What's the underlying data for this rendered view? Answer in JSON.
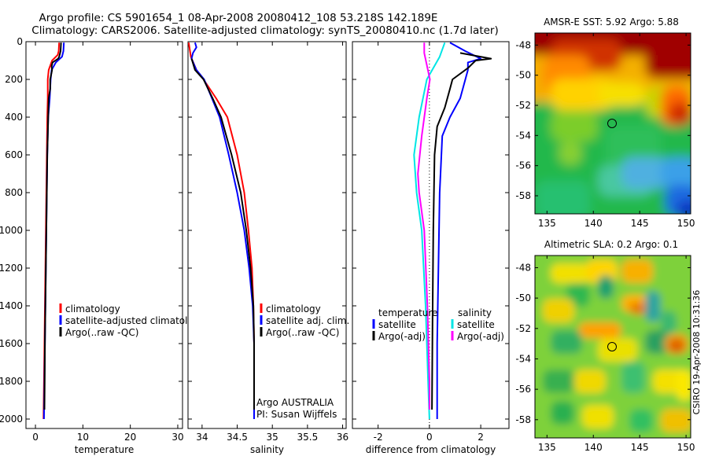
{
  "title": {
    "line1": "Argo profile: CS 5901654_1 08-Apr-2008 20080412_108 53.218S 142.189E",
    "line2": "Climatology: CARS2006. Satellite-adjusted climatology: synTS_20080410.nc (1.7d later)"
  },
  "depth_ticks": [
    "0",
    "200",
    "400",
    "600",
    "800",
    "1000",
    "1200",
    "1400",
    "1600",
    "1800",
    "2000"
  ],
  "colors": {
    "red": "#ff0000",
    "blue": "#0000ff",
    "black": "#000000",
    "cyan": "#00e5e5",
    "magenta": "#ff00ff",
    "axis": "#000000"
  },
  "chart_data": [
    {
      "id": "temperature",
      "type": "line",
      "xlabel": "temperature",
      "ylabel": "",
      "xlim": [
        -2,
        31
      ],
      "ylim": [
        2050,
        0
      ],
      "xticks": [
        "0",
        "10",
        "20",
        "30"
      ],
      "legend": [
        "climatology",
        "satellite-adjusted climatology",
        "Argo(..raw -QC)"
      ],
      "series": [
        {
          "name": "climatology",
          "color": "red",
          "points": [
            [
              5.0,
              5
            ],
            [
              4.9,
              50
            ],
            [
              4.7,
              70
            ],
            [
              3.5,
              100
            ],
            [
              2.8,
              150
            ],
            [
              2.6,
              200
            ],
            [
              2.6,
              300
            ],
            [
              2.5,
              400
            ],
            [
              2.4,
              600
            ],
            [
              2.3,
              800
            ],
            [
              2.2,
              1000
            ],
            [
              2.1,
              1200
            ],
            [
              2.0,
              1400
            ],
            [
              1.9,
              1600
            ],
            [
              1.8,
              1800
            ],
            [
              1.7,
              2000
            ]
          ]
        },
        {
          "name": "satellite-adjusted climatology",
          "color": "blue",
          "points": [
            [
              6.0,
              5
            ],
            [
              5.9,
              50
            ],
            [
              5.6,
              80
            ],
            [
              4.3,
              110
            ],
            [
              3.4,
              150
            ],
            [
              3.2,
              200
            ],
            [
              3.0,
              300
            ],
            [
              2.7,
              400
            ],
            [
              2.5,
              600
            ],
            [
              2.4,
              800
            ],
            [
              2.3,
              1000
            ],
            [
              2.2,
              1200
            ],
            [
              2.1,
              1400
            ],
            [
              2.0,
              1600
            ],
            [
              1.9,
              1800
            ],
            [
              1.8,
              2000
            ]
          ]
        },
        {
          "name": "Argo(..raw -QC)",
          "color": "black",
          "points": [
            [
              5.4,
              5
            ],
            [
              5.3,
              50
            ],
            [
              5.0,
              80
            ],
            [
              4.8,
              90
            ],
            [
              3.6,
              110
            ],
            [
              3.4,
              130
            ],
            [
              3.5,
              150
            ],
            [
              3.1,
              200
            ],
            [
              3.1,
              250
            ],
            [
              2.8,
              300
            ],
            [
              2.7,
              400
            ],
            [
              2.5,
              600
            ],
            [
              2.4,
              800
            ],
            [
              2.3,
              1000
            ],
            [
              2.2,
              1200
            ],
            [
              2.1,
              1400
            ],
            [
              2.0,
              1600
            ],
            [
              1.95,
              1800
            ],
            [
              1.9,
              1950
            ]
          ]
        }
      ]
    },
    {
      "id": "salinity",
      "type": "line",
      "xlabel": "salinity",
      "ylabel": "",
      "xlim": [
        33.8,
        36.05
      ],
      "ylim": [
        2050,
        0
      ],
      "xticks": [
        "34",
        "34.5",
        "35",
        "35.5",
        "36"
      ],
      "legend": [
        "climatology",
        "satellite adj. clim.",
        "Argo(..raw -QC)"
      ],
      "annotation": [
        "Argo AUSTRALIA",
        "PI: Susan Wijffels"
      ],
      "series": [
        {
          "name": "climatology",
          "color": "red",
          "points": [
            [
              33.81,
              5
            ],
            [
              33.84,
              80
            ],
            [
              33.92,
              150
            ],
            [
              34.02,
              200
            ],
            [
              34.2,
              300
            ],
            [
              34.36,
              400
            ],
            [
              34.5,
              600
            ],
            [
              34.6,
              800
            ],
            [
              34.66,
              1000
            ],
            [
              34.71,
              1200
            ],
            [
              34.73,
              1400
            ],
            [
              34.74,
              1600
            ],
            [
              34.74,
              1800
            ],
            [
              34.74,
              2000
            ]
          ]
        },
        {
          "name": "satellite adj. clim.",
          "color": "blue",
          "points": [
            [
              33.9,
              5
            ],
            [
              33.92,
              30
            ],
            [
              33.87,
              60
            ],
            [
              33.85,
              90
            ],
            [
              33.92,
              150
            ],
            [
              34.03,
              200
            ],
            [
              34.14,
              300
            ],
            [
              34.25,
              400
            ],
            [
              34.38,
              600
            ],
            [
              34.5,
              800
            ],
            [
              34.6,
              1000
            ],
            [
              34.67,
              1200
            ],
            [
              34.72,
              1400
            ],
            [
              34.74,
              1600
            ],
            [
              34.74,
              1800
            ],
            [
              34.74,
              2000
            ]
          ]
        },
        {
          "name": "Argo(..raw -QC)",
          "color": "black",
          "points": [
            [
              33.85,
              90
            ],
            [
              33.9,
              150
            ],
            [
              34.02,
              200
            ],
            [
              34.15,
              300
            ],
            [
              34.27,
              400
            ],
            [
              34.42,
              600
            ],
            [
              34.55,
              800
            ],
            [
              34.63,
              1000
            ],
            [
              34.69,
              1200
            ],
            [
              34.73,
              1400
            ],
            [
              34.74,
              1600
            ],
            [
              34.74,
              1800
            ],
            [
              34.74,
              1950
            ]
          ]
        }
      ]
    },
    {
      "id": "difference",
      "type": "line",
      "xlabel": "difference from climatology",
      "ylabel": "",
      "xlim": [
        -3,
        3.1
      ],
      "ylim": [
        2050,
        0
      ],
      "xticks": [
        "-2",
        "0",
        "2"
      ],
      "legend_temperature_header": "temperature",
      "legend_salinity_header": "salinity",
      "legend": [
        "satellite",
        "Argo(-adj)",
        "satellite",
        "Argo(-adj)"
      ],
      "series": [
        {
          "name": "satellite",
          "group": "temperature",
          "color": "blue",
          "points": [
            [
              0.8,
              5
            ],
            [
              1.4,
              50
            ],
            [
              2.0,
              90
            ],
            [
              1.5,
              110
            ],
            [
              1.5,
              150
            ],
            [
              1.2,
              300
            ],
            [
              0.8,
              400
            ],
            [
              0.5,
              500
            ],
            [
              0.4,
              800
            ],
            [
              0.35,
              1200
            ],
            [
              0.3,
              1600
            ],
            [
              0.3,
              2000
            ]
          ]
        },
        {
          "name": "Argo(-adj)",
          "group": "temperature",
          "color": "black",
          "points": [
            [
              1.2,
              60
            ],
            [
              2.4,
              90
            ],
            [
              1.8,
              100
            ],
            [
              1.5,
              140
            ],
            [
              0.9,
              200
            ],
            [
              0.8,
              250
            ],
            [
              0.6,
              350
            ],
            [
              0.3,
              450
            ],
            [
              0.2,
              600
            ],
            [
              0.15,
              1000
            ],
            [
              0.12,
              1500
            ],
            [
              0.1,
              1950
            ]
          ]
        },
        {
          "name": "satellite",
          "group": "salinity",
          "color": "cyan",
          "points": [
            [
              0.6,
              5
            ],
            [
              0.4,
              80
            ],
            [
              -0.1,
              200
            ],
            [
              -0.4,
              400
            ],
            [
              -0.6,
              600
            ],
            [
              -0.5,
              800
            ],
            [
              -0.3,
              1000
            ],
            [
              -0.15,
              1400
            ],
            [
              -0.05,
              1800
            ],
            [
              0.0,
              2000
            ]
          ]
        },
        {
          "name": "Argo(-adj)",
          "group": "salinity",
          "color": "magenta",
          "points": [
            [
              -0.2,
              5
            ],
            [
              -0.2,
              60
            ],
            [
              0.02,
              200
            ],
            [
              -0.1,
              300
            ],
            [
              -0.3,
              500
            ],
            [
              -0.45,
              700
            ],
            [
              -0.4,
              800
            ],
            [
              -0.2,
              1000
            ],
            [
              -0.08,
              1400
            ],
            [
              0.0,
              1800
            ],
            [
              0.0,
              1950
            ]
          ]
        }
      ]
    },
    {
      "id": "sst_map",
      "type": "heatmap",
      "title": "AMSR-E SST: 5.92 Argo: 5.88",
      "xlim": [
        133.7,
        150.5
      ],
      "ylim": [
        -59.2,
        -47.2
      ],
      "xticks": [
        "135",
        "140",
        "145",
        "150"
      ],
      "yticks": [
        "-48",
        "-50",
        "-52",
        "-54",
        "-56",
        "-58"
      ],
      "marker": {
        "lon": 142.189,
        "lat": -53.218
      }
    },
    {
      "id": "sla_map",
      "type": "heatmap",
      "title": "Altimetric SLA: 0.2 Argo: 0.1",
      "xlim": [
        133.7,
        150.5
      ],
      "ylim": [
        -59.2,
        -47.2
      ],
      "xticks": [
        "135",
        "140",
        "145",
        "150"
      ],
      "yticks": [
        "-48",
        "-50",
        "-52",
        "-54",
        "-56",
        "-58"
      ],
      "marker": {
        "lon": 142.189,
        "lat": -53.218
      }
    }
  ],
  "footer_stamp": "CSIRO 19-Apr-2008 10:31:36"
}
